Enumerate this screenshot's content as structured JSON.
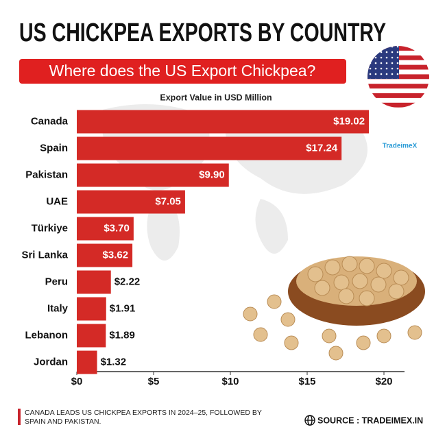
{
  "chart_data": {
    "type": "bar",
    "orientation": "horizontal",
    "title": "US CHICKPEA EXPORTS BY COUNTRY",
    "subtitle": "Where does the US Export Chickpea?",
    "x_label": "Export Value in USD Million",
    "categories": [
      "Canada",
      "Spain",
      "Pakistan",
      "UAE",
      "Türkiye",
      "Sri Lanka",
      "Peru",
      "Italy",
      "Lebanon",
      "Jordan"
    ],
    "values": [
      19.02,
      17.24,
      9.9,
      7.05,
      3.7,
      3.62,
      2.22,
      1.91,
      1.89,
      1.32
    ],
    "value_labels": [
      "$19.02",
      "$17.24",
      "$9.90",
      "$7.05",
      "$3.70",
      "$3.62",
      "$2.22",
      "$1.91",
      "$1.89",
      "$1.32"
    ],
    "color": "#d42a26",
    "xlim": [
      0,
      22
    ],
    "xticks": [
      {
        "value": 0,
        "label": "$0"
      },
      {
        "value": 5,
        "label": "$5"
      },
      {
        "value": 10,
        "label": "$10"
      },
      {
        "value": 15,
        "label": "$15"
      },
      {
        "value": 20,
        "label": "$20"
      }
    ],
    "grid": false,
    "watermark": "TradeimeX",
    "footnote": "CANADA LEADS US CHICKPEA EXPORTS IN 2024–25, FOLLOWED BY SPAIN AND PAKISTAN.",
    "source": "SOURCE : TRADEIMEX.IN"
  }
}
